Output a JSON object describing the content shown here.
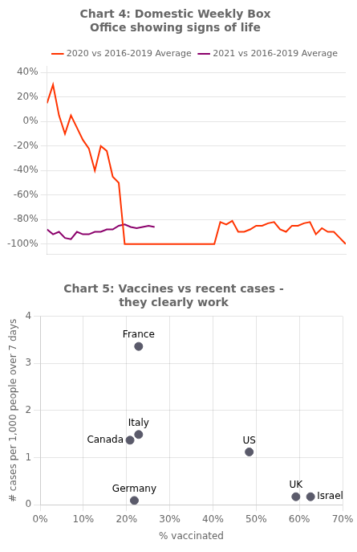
{
  "chart_data": [
    {
      "type": "line",
      "title": "Chart 4: Domestic Weekly Box\nOffice showing signs of life",
      "xlim": [
        0,
        50
      ],
      "ylim": [
        -108,
        45
      ],
      "yticks": [
        {
          "value": -100,
          "label": "-100%"
        },
        {
          "value": -80,
          "label": "-80%"
        },
        {
          "value": -60,
          "label": "-60%"
        },
        {
          "value": -40,
          "label": "-40%"
        },
        {
          "value": -20,
          "label": "-20%"
        },
        {
          "value": 0,
          "label": "0%"
        },
        {
          "value": 20,
          "label": "20%"
        },
        {
          "value": 40,
          "label": "40%"
        }
      ],
      "tick_labels": "y",
      "grid": true,
      "legend": "upper right",
      "series": [
        {
          "name": "2020 vs 2016-2019 Average",
          "color": "#FF3300",
          "x": [
            0,
            1,
            2,
            3,
            4,
            5,
            6,
            7,
            8,
            9,
            10,
            11,
            12,
            13,
            14,
            15,
            16,
            17,
            18,
            19,
            20,
            21,
            22,
            23,
            24,
            25,
            26,
            27,
            28,
            29,
            30,
            31,
            32,
            33,
            34,
            35,
            36,
            37,
            38,
            39,
            40,
            41,
            42,
            43,
            44,
            45,
            46,
            47,
            48,
            49,
            50
          ],
          "values": [
            15,
            30,
            5,
            -10,
            5,
            -5,
            -15,
            -22,
            -40,
            -20,
            -24,
            -45,
            -50,
            -100,
            -100,
            -100,
            -100,
            -100,
            -100,
            -100,
            -100,
            -100,
            -100,
            -100,
            -100,
            -100,
            -100,
            -100,
            -100,
            -82,
            -84,
            -81,
            -90,
            -90,
            -88,
            -85,
            -85,
            -83,
            -82,
            -88,
            -90,
            -85,
            -85,
            -83,
            -82,
            -92,
            -87,
            -90,
            -90,
            -95,
            -100
          ]
        },
        {
          "name": "2021 vs 2016-2019 Average",
          "color": "#8B006B",
          "x": [
            0,
            1,
            2,
            3,
            4,
            5,
            6,
            7,
            8,
            9,
            10,
            11,
            12,
            13,
            14,
            15,
            16,
            17,
            18
          ],
          "values": [
            -88,
            -92,
            -90,
            -95,
            -96,
            -90,
            -92,
            -92,
            -90,
            -90,
            -88,
            -88,
            -85,
            -84,
            -86,
            -87,
            -86,
            -85,
            -86
          ]
        }
      ]
    },
    {
      "type": "scatter",
      "title": "Chart 5: Vaccines vs recent cases -\nthey clearly work",
      "xlabel": "% vaccinated",
      "ylabel": "# cases per 1,000 people over 7 days",
      "x": [
        0.228,
        0.228,
        0.208,
        0.218,
        0.484,
        0.592,
        0.626
      ],
      "values": [
        3.36,
        1.49,
        1.37,
        0.09,
        1.12,
        0.17,
        0.17
      ],
      "point_labels": [
        "France",
        "Italy",
        "Canada",
        "Germany",
        "US",
        "UK",
        "Israel"
      ],
      "color": "#5a5a6a",
      "xlim": [
        0,
        0.7
      ],
      "ylim": [
        0,
        4
      ],
      "xticks": [
        {
          "value": 0,
          "label": "0%"
        },
        {
          "value": 0.1,
          "label": "10%"
        },
        {
          "value": 0.2,
          "label": "20%"
        },
        {
          "value": 0.3,
          "label": "30%"
        },
        {
          "value": 0.4,
          "label": "40%"
        },
        {
          "value": 0.5,
          "label": "50%"
        },
        {
          "value": 0.6,
          "label": "60%"
        },
        {
          "value": 0.7,
          "label": "70%"
        }
      ],
      "yticks": [
        0,
        1,
        2,
        3,
        4
      ],
      "grid": true
    }
  ]
}
